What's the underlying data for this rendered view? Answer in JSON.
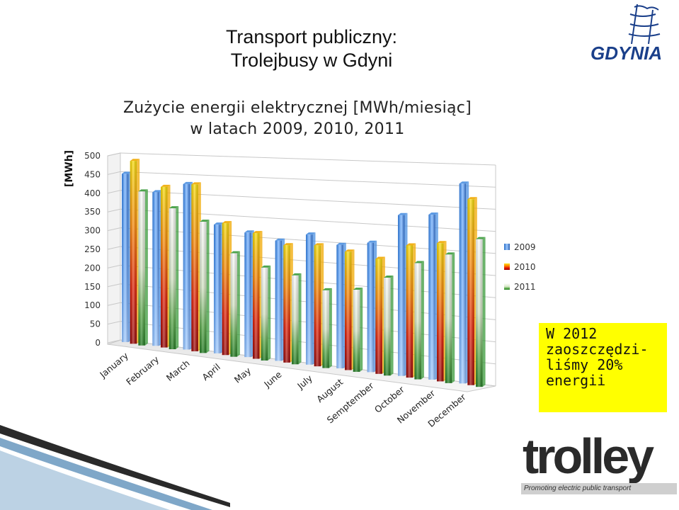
{
  "slide": {
    "title_line1": "Transport publiczny:",
    "title_line2": "Trolejbusy w Gdyni"
  },
  "callout": {
    "lines": [
      "W 2012",
      "zaoszczędzi-",
      "liśmy 20%",
      "energii"
    ]
  },
  "logos": {
    "gdynia": "GDYNIA",
    "trolley": "trolley",
    "trolley_tagline": "Promoting electric public transport"
  },
  "chart_data": {
    "type": "bar",
    "title_line1": "Zużycie energii elektrycznej [MWh/miesiąc]",
    "title_line2": "w latach 2009, 2010, 2011",
    "ylabel": "[MWh]",
    "ylim": [
      0,
      500
    ],
    "yticks": [
      0,
      50,
      100,
      150,
      200,
      250,
      300,
      350,
      400,
      450,
      500
    ],
    "grid": true,
    "legend_position": "right",
    "categories": [
      "January",
      "February",
      "March",
      "April",
      "May",
      "June",
      "July",
      "August",
      "Semptember",
      "October",
      "November",
      "December"
    ],
    "series": [
      {
        "name": "2009",
        "color": "#4a8fe0",
        "values": [
          445,
          400,
          425,
          325,
          310,
          295,
          315,
          295,
          305,
          375,
          380,
          455
        ]
      },
      {
        "name": "2010",
        "color": "#f0a800",
        "values": [
          480,
          415,
          425,
          330,
          310,
          285,
          290,
          280,
          268,
          305,
          315,
          420
        ]
      },
      {
        "name": "2011",
        "color": "#3a9a3a",
        "values": [
          400,
          360,
          330,
          255,
          225,
          212,
          182,
          190,
          225,
          265,
          290,
          330
        ]
      }
    ]
  }
}
